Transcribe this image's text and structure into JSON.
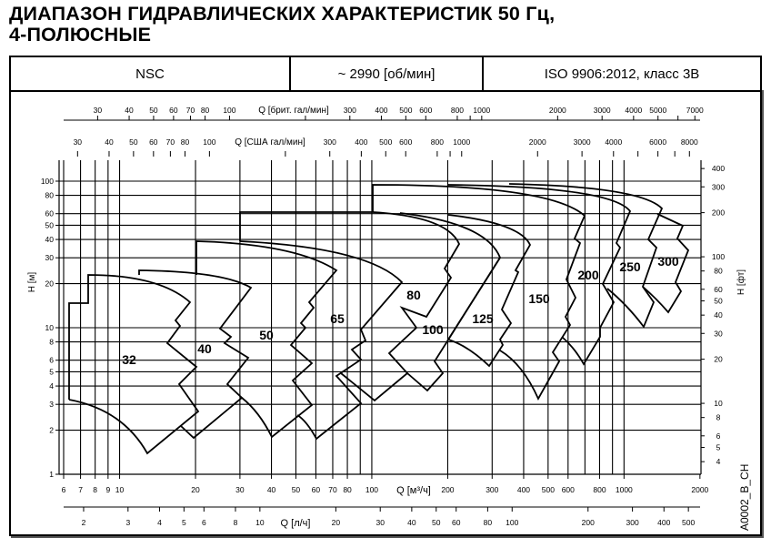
{
  "title_line1": "ДИАПАЗОН ГИДРАВЛИЧЕСКИХ ХАРАКТЕРИСТИК 50 Гц,",
  "title_line2": "4-ПОЛЮСНЫЕ",
  "header": {
    "series": "NSC",
    "speed": "~ 2990 [об/мин]",
    "standard": "ISO 9906:2012, класс 3В"
  },
  "drawing_code": "A0002_B_CH",
  "chart_data": {
    "type": "area",
    "scale": "log-log",
    "grid": true,
    "x_axis": {
      "label": "Q [м³/ч]",
      "range": [
        6,
        2000
      ],
      "ticks": [
        6,
        7,
        8,
        9,
        10,
        20,
        30,
        40,
        50,
        60,
        70,
        80,
        100,
        200,
        300,
        400,
        500,
        600,
        800,
        1000,
        2000
      ]
    },
    "x_axis_ls": {
      "label": "Q [л/ч]",
      "ticks": [
        2,
        3,
        4,
        5,
        6,
        8,
        10,
        20,
        30,
        40,
        50,
        60,
        80,
        100,
        200,
        300,
        400,
        500
      ]
    },
    "x_axis_brit": {
      "label": "Q [брит. гал/мин]",
      "ticks": [
        30,
        40,
        50,
        60,
        70,
        80,
        100,
        300,
        400,
        500,
        600,
        800,
        1000,
        2000,
        3000,
        4000,
        5000,
        7000
      ]
    },
    "x_axis_us": {
      "label": "Q [США гал/мин]",
      "ticks": [
        30,
        40,
        50,
        60,
        70,
        80,
        100,
        300,
        400,
        500,
        600,
        800,
        1000,
        2000,
        3000,
        4000,
        6000,
        8000
      ]
    },
    "y_axis": {
      "label": "H [м]",
      "range": [
        1,
        100
      ],
      "ticks": [
        1,
        2,
        3,
        4,
        5,
        6,
        8,
        10,
        20,
        30,
        40,
        50,
        60,
        80,
        100
      ]
    },
    "y_axis_ft": {
      "label": "H [фт]",
      "ticks": [
        4,
        5,
        6,
        8,
        10,
        20,
        30,
        40,
        50,
        60,
        80,
        100,
        200,
        300,
        400
      ]
    },
    "series": [
      {
        "name": "32",
        "max_head_m": 23,
        "max_flow_m3h": 20
      },
      {
        "name": "40",
        "max_head_m": 23,
        "max_flow_m3h": 33
      },
      {
        "name": "50",
        "max_head_m": 39,
        "max_flow_m3h": 72
      },
      {
        "name": "65",
        "max_head_m": 39,
        "max_flow_m3h": 132
      },
      {
        "name": "80",
        "max_head_m": 62,
        "max_flow_m3h": 222
      },
      {
        "name": "100",
        "max_head_m": 62,
        "max_flow_m3h": 322
      },
      {
        "name": "125",
        "max_head_m": 62,
        "max_flow_m3h": 424
      },
      {
        "name": "150",
        "max_head_m": 94,
        "max_flow_m3h": 698
      },
      {
        "name": "200",
        "max_head_m": 94,
        "max_flow_m3h": 1057
      },
      {
        "name": "250",
        "max_head_m": 94,
        "max_flow_m3h": 1413
      },
      {
        "name": "300",
        "max_head_m": 94,
        "max_flow_m3h": 1798
      }
    ]
  }
}
